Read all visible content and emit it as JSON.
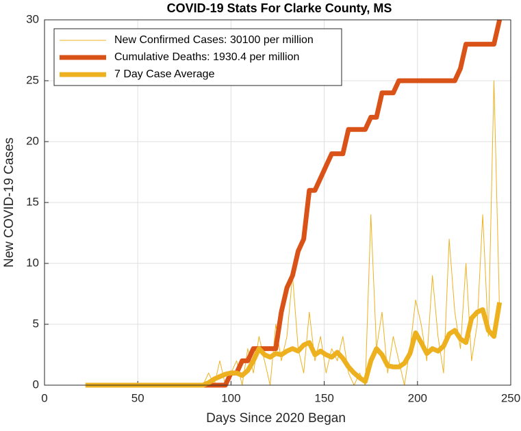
{
  "chart_data": {
    "type": "line",
    "title": "COVID-19 Stats For Clarke County, MS",
    "xlabel": "Days Since 2020 Began",
    "ylabel": "New COVID-19 Cases",
    "x": [
      22,
      25,
      28,
      31,
      34,
      37,
      40,
      43,
      46,
      49,
      52,
      55,
      58,
      61,
      64,
      67,
      70,
      73,
      76,
      79,
      82,
      85,
      88,
      91,
      94,
      97,
      100,
      103,
      106,
      109,
      112,
      115,
      118,
      121,
      124,
      127,
      130,
      133,
      136,
      139,
      142,
      145,
      148,
      151,
      154,
      157,
      160,
      163,
      166,
      169,
      172,
      175,
      178,
      181,
      184,
      187,
      190,
      193,
      196,
      199,
      202,
      205,
      208,
      211,
      214,
      217,
      220,
      223,
      226,
      229,
      232,
      235,
      238,
      241,
      244
    ],
    "series": [
      {
        "name": "New Confirmed Cases: 30100 per million",
        "color": "#EDB120",
        "width": 1,
        "values": [
          0,
          0,
          0,
          0,
          0,
          0,
          0,
          0,
          0,
          0,
          0,
          0,
          0,
          0,
          0,
          0,
          0,
          0,
          0,
          0,
          0,
          0,
          1,
          0,
          2,
          0,
          1,
          2,
          0,
          3,
          1,
          4,
          2,
          0,
          5,
          2,
          4,
          9,
          3,
          1,
          6,
          2,
          4,
          1,
          3,
          2,
          4,
          1,
          0,
          1,
          0,
          14,
          3,
          6,
          1,
          4,
          2,
          0,
          3,
          7,
          5,
          2,
          9,
          4,
          1,
          12,
          6,
          3,
          10,
          2,
          5,
          14,
          4,
          25,
          6
        ]
      },
      {
        "name": "Cumulative Deaths: 1930.4 per million",
        "color": "#D95319",
        "width": 7,
        "values": [
          0,
          0,
          0,
          0,
          0,
          0,
          0,
          0,
          0,
          0,
          0,
          0,
          0,
          0,
          0,
          0,
          0,
          0,
          0,
          0,
          0,
          0,
          0,
          0,
          0,
          0,
          1,
          1,
          2,
          2,
          3,
          3,
          3,
          3,
          3,
          6,
          8,
          9,
          11,
          12,
          16,
          16,
          17,
          18,
          19,
          19,
          19,
          21,
          21,
          21,
          21,
          22,
          22,
          24,
          24,
          24,
          25,
          25,
          25,
          25,
          25,
          25,
          25,
          25,
          25,
          25,
          25,
          26,
          28,
          28,
          28,
          28,
          28,
          28,
          30
        ]
      },
      {
        "name": "7 Day Case Average",
        "color": "#EDB120",
        "width": 7,
        "values": [
          0,
          0,
          0,
          0,
          0,
          0,
          0,
          0,
          0,
          0,
          0,
          0,
          0,
          0,
          0,
          0,
          0,
          0,
          0,
          0,
          0,
          0,
          0.2,
          0.5,
          0.7,
          0.9,
          1,
          1,
          0.8,
          1.2,
          2,
          3,
          2.5,
          2.3,
          2.6,
          2.5,
          2.8,
          3,
          2.8,
          3.3,
          3.5,
          2.5,
          2.8,
          2.5,
          2.3,
          2.7,
          2.2,
          1.5,
          1,
          0.6,
          0.3,
          2,
          3,
          2.5,
          1.6,
          1.5,
          1.5,
          1.8,
          2.6,
          4.3,
          3.5,
          2.6,
          3,
          2.8,
          3.2,
          4.2,
          4.5,
          3.8,
          3.5,
          5.5,
          6,
          6.2,
          4.5,
          4,
          6.8
        ]
      }
    ],
    "xlim": [
      0,
      250
    ],
    "xticks": [
      0,
      50,
      100,
      150,
      200,
      250
    ],
    "ylim": [
      0,
      30
    ],
    "yticks": [
      0,
      5,
      10,
      15,
      20,
      25,
      30
    ],
    "grid": true,
    "legend": "upper left"
  }
}
